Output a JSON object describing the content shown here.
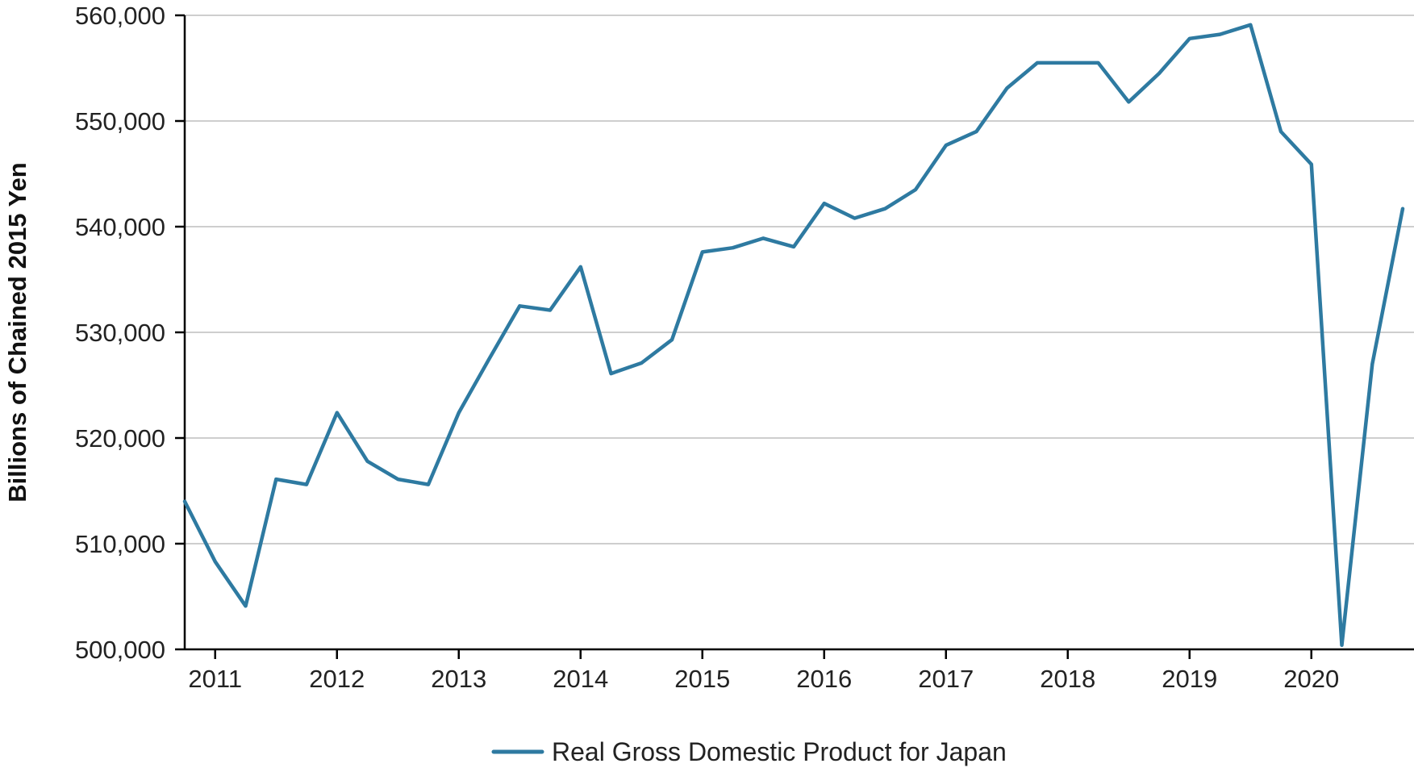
{
  "chart_data": {
    "type": "line",
    "title": "",
    "xlabel": "",
    "ylabel": "Billions of Chained 2015 Yen",
    "ylim": [
      500000,
      560000
    ],
    "yticks": [
      500000,
      510000,
      520000,
      530000,
      540000,
      550000,
      560000
    ],
    "ytick_labels": [
      "500,000",
      "510,000",
      "520,000",
      "530,000",
      "540,000",
      "550,000",
      "560,000"
    ],
    "xlim": [
      2010.75,
      2020.75
    ],
    "xticks": [
      2011,
      2012,
      2013,
      2014,
      2015,
      2016,
      2017,
      2018,
      2019,
      2020
    ],
    "xtick_labels": [
      "2011",
      "2012",
      "2013",
      "2014",
      "2015",
      "2016",
      "2017",
      "2018",
      "2019",
      "2020"
    ],
    "grid": "horizontal",
    "legend_position": "bottom",
    "colors": {
      "series": "#2e7aa1",
      "grid": "#bdbdbd",
      "axis": "#000000"
    },
    "series": [
      {
        "name": "Real Gross Domestic Product for Japan",
        "x": [
          "2010-10-01",
          "2011-01-01",
          "2011-04-01",
          "2011-07-01",
          "2011-10-01",
          "2012-01-01",
          "2012-04-01",
          "2012-07-01",
          "2012-10-01",
          "2013-01-01",
          "2013-04-01",
          "2013-07-01",
          "2013-10-01",
          "2014-01-01",
          "2014-04-01",
          "2014-07-01",
          "2014-10-01",
          "2015-01-01",
          "2015-04-01",
          "2015-07-01",
          "2015-10-01",
          "2016-01-01",
          "2016-04-01",
          "2016-07-01",
          "2016-10-01",
          "2017-01-01",
          "2017-04-01",
          "2017-07-01",
          "2017-10-01",
          "2018-01-01",
          "2018-04-01",
          "2018-07-01",
          "2018-10-01",
          "2019-01-01",
          "2019-04-01",
          "2019-07-01",
          "2019-10-01",
          "2020-01-01",
          "2020-04-01",
          "2020-07-01",
          "2020-10-01"
        ],
        "values": [
          514000,
          508300,
          504100,
          516100,
          515600,
          522400,
          517800,
          516100,
          515600,
          522400,
          527500,
          532500,
          532100,
          536200,
          526100,
          527100,
          529300,
          537600,
          538000,
          538900,
          538100,
          542200,
          540800,
          541700,
          543500,
          547700,
          549000,
          553100,
          555500,
          555500,
          555500,
          551800,
          554500,
          557800,
          558200,
          559100,
          549000,
          545900,
          500400,
          527000,
          541700
        ]
      }
    ]
  }
}
